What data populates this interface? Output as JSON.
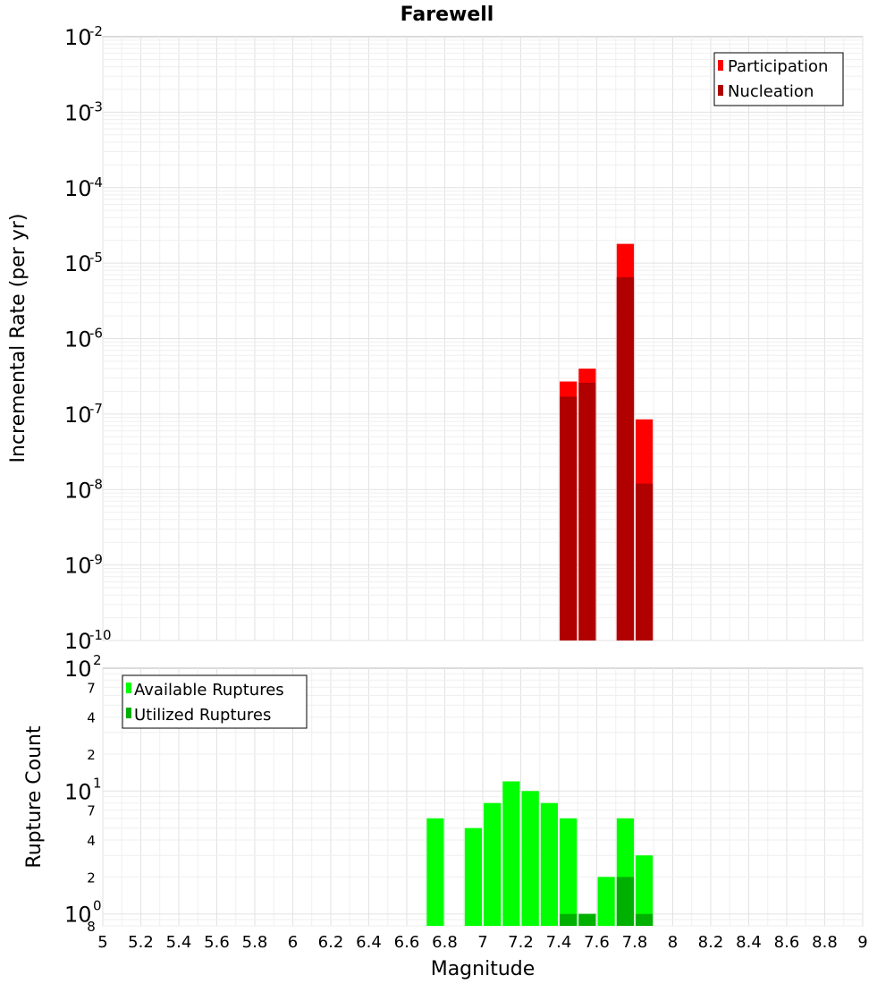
{
  "chart_data": [
    {
      "type": "bar",
      "title": "Farewell",
      "xlabel": "",
      "ylabel": "Incremental Rate (per yr)",
      "yscale": "log",
      "xlim": [
        5,
        9
      ],
      "ylim": [
        1e-10,
        0.01
      ],
      "grid": true,
      "legend_position": "top-right",
      "bin_width": 0.1,
      "y_ticks": [
        {
          "base": "10",
          "exp": "-10",
          "value": 1e-10
        },
        {
          "base": "10",
          "exp": "-9",
          "value": 1e-09
        },
        {
          "base": "10",
          "exp": "-8",
          "value": 1e-08
        },
        {
          "base": "10",
          "exp": "-7",
          "value": 1e-07
        },
        {
          "base": "10",
          "exp": "-6",
          "value": 1e-06
        },
        {
          "base": "10",
          "exp": "-5",
          "value": 1e-05
        },
        {
          "base": "10",
          "exp": "-4",
          "value": 0.0001
        },
        {
          "base": "10",
          "exp": "-3",
          "value": 0.001
        },
        {
          "base": "10",
          "exp": "-2",
          "value": 0.01
        }
      ],
      "series": [
        {
          "name": "Participation",
          "color": "#ff0000",
          "x": [
            7.45,
            7.55,
            7.75,
            7.85
          ],
          "values": [
            2.7e-07,
            4e-07,
            1.8e-05,
            8.5e-08
          ]
        },
        {
          "name": "Nucleation",
          "color": "#b00000",
          "x": [
            7.45,
            7.55,
            7.75,
            7.85
          ],
          "values": [
            1.7e-07,
            2.6e-07,
            6.5e-06,
            1.2e-08
          ]
        }
      ]
    },
    {
      "type": "bar",
      "title": "",
      "xlabel": "Magnitude",
      "ylabel": "Rupture Count",
      "yscale": "log",
      "xlim": [
        5,
        9
      ],
      "ylim": [
        0.8,
        100
      ],
      "grid": true,
      "legend_position": "top-left",
      "bin_width": 0.1,
      "x_ticks": [
        "5",
        "5.2",
        "5.4",
        "5.6",
        "5.8",
        "6",
        "6.2",
        "6.4",
        "6.6",
        "6.8",
        "7",
        "7.2",
        "7.4",
        "7.6",
        "7.8",
        "8",
        "8.2",
        "8.4",
        "8.6",
        "8.8",
        "9"
      ],
      "y_ticks": [
        {
          "base": "10",
          "exp": "0",
          "value": 1
        },
        {
          "base": "10",
          "exp": "1",
          "value": 10
        },
        {
          "base": "10",
          "exp": "2",
          "value": 100
        }
      ],
      "y_minor_ticks": [
        {
          "label": "8",
          "value": 0.8
        },
        {
          "label": "2",
          "value": 2
        },
        {
          "label": "4",
          "value": 4
        },
        {
          "label": "7",
          "value": 7
        },
        {
          "label": "2",
          "value": 20
        },
        {
          "label": "4",
          "value": 40
        },
        {
          "label": "7",
          "value": 70
        }
      ],
      "series": [
        {
          "name": "Available Ruptures",
          "color": "#00ff00",
          "x": [
            6.75,
            6.95,
            7.05,
            7.15,
            7.25,
            7.35,
            7.45,
            7.55,
            7.65,
            7.75,
            7.85
          ],
          "values": [
            6,
            5,
            8,
            12,
            10,
            8,
            6,
            1,
            2,
            6,
            3
          ]
        },
        {
          "name": "Utilized Ruptures",
          "color": "#00b000",
          "x": [
            7.45,
            7.55,
            7.75,
            7.85
          ],
          "values": [
            1,
            1,
            2,
            1
          ]
        }
      ]
    }
  ]
}
